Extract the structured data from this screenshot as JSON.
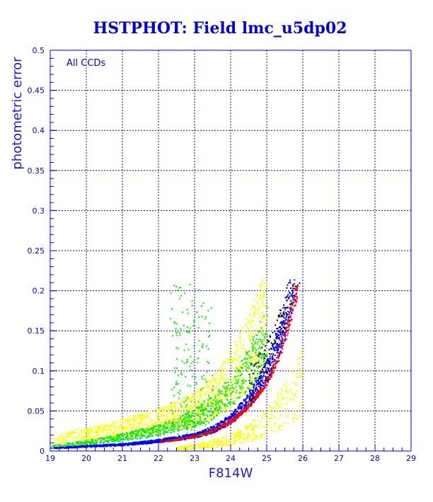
{
  "chart_data": {
    "type": "scatter",
    "title": "HSTPHOT: Field lmc_u5dp02",
    "xlabel": "F814W",
    "ylabel": "photometric error",
    "annotation": "All CCDs",
    "xlim": [
      19,
      29
    ],
    "ylim": [
      0,
      0.5
    ],
    "x_ticks": [
      "19",
      "20",
      "21",
      "22",
      "23",
      "24",
      "25",
      "26",
      "27",
      "28",
      "29"
    ],
    "y_ticks": [
      "0",
      "0.05",
      "0.1",
      "0.15",
      "0.2",
      "0.25",
      "0.3",
      "0.35",
      "0.4",
      "0.45",
      "0.5"
    ],
    "grid": true,
    "error_cutoff": 0.215,
    "series_colors": {
      "blue": "#0000ff",
      "red": "#ff0000",
      "green": "#00ee00",
      "yellow": "#ffff00",
      "dark": "#000000"
    },
    "series": [
      {
        "color": "blue",
        "x": [
          19.0,
          19.5,
          20.0,
          20.5,
          21.0,
          21.5,
          22.0,
          22.5,
          23.0,
          23.5,
          24.0,
          24.5,
          25.0,
          25.3,
          25.5,
          25.7,
          25.8
        ],
        "y": [
          0.004,
          0.005,
          0.006,
          0.007,
          0.008,
          0.01,
          0.012,
          0.015,
          0.018,
          0.025,
          0.037,
          0.058,
          0.09,
          0.122,
          0.15,
          0.185,
          0.21
        ]
      },
      {
        "color": "red",
        "x": [
          22.0,
          22.5,
          23.0,
          23.5,
          24.0,
          24.5,
          25.0,
          25.3,
          25.5,
          25.7,
          25.85
        ],
        "y": [
          0.012,
          0.015,
          0.019,
          0.026,
          0.038,
          0.057,
          0.088,
          0.117,
          0.145,
          0.178,
          0.205
        ]
      },
      {
        "color": "green",
        "x": [
          19.0,
          19.5,
          20.0,
          20.5,
          21.0,
          21.5,
          22.0,
          22.5,
          23.0,
          23.5,
          24.0,
          24.5,
          25.0
        ],
        "y": [
          0.006,
          0.008,
          0.01,
          0.013,
          0.016,
          0.02,
          0.024,
          0.03,
          0.038,
          0.05,
          0.066,
          0.092,
          0.13
        ]
      },
      {
        "color": "yellow",
        "x": [
          19.0,
          19.5,
          20.0,
          20.5,
          21.0,
          21.5,
          22.0,
          22.5,
          23.0,
          23.5,
          24.0,
          24.5,
          25.0
        ],
        "y": [
          0.014,
          0.016,
          0.019,
          0.022,
          0.026,
          0.03,
          0.035,
          0.04,
          0.047,
          0.06,
          0.08,
          0.11,
          0.15
        ]
      }
    ]
  }
}
